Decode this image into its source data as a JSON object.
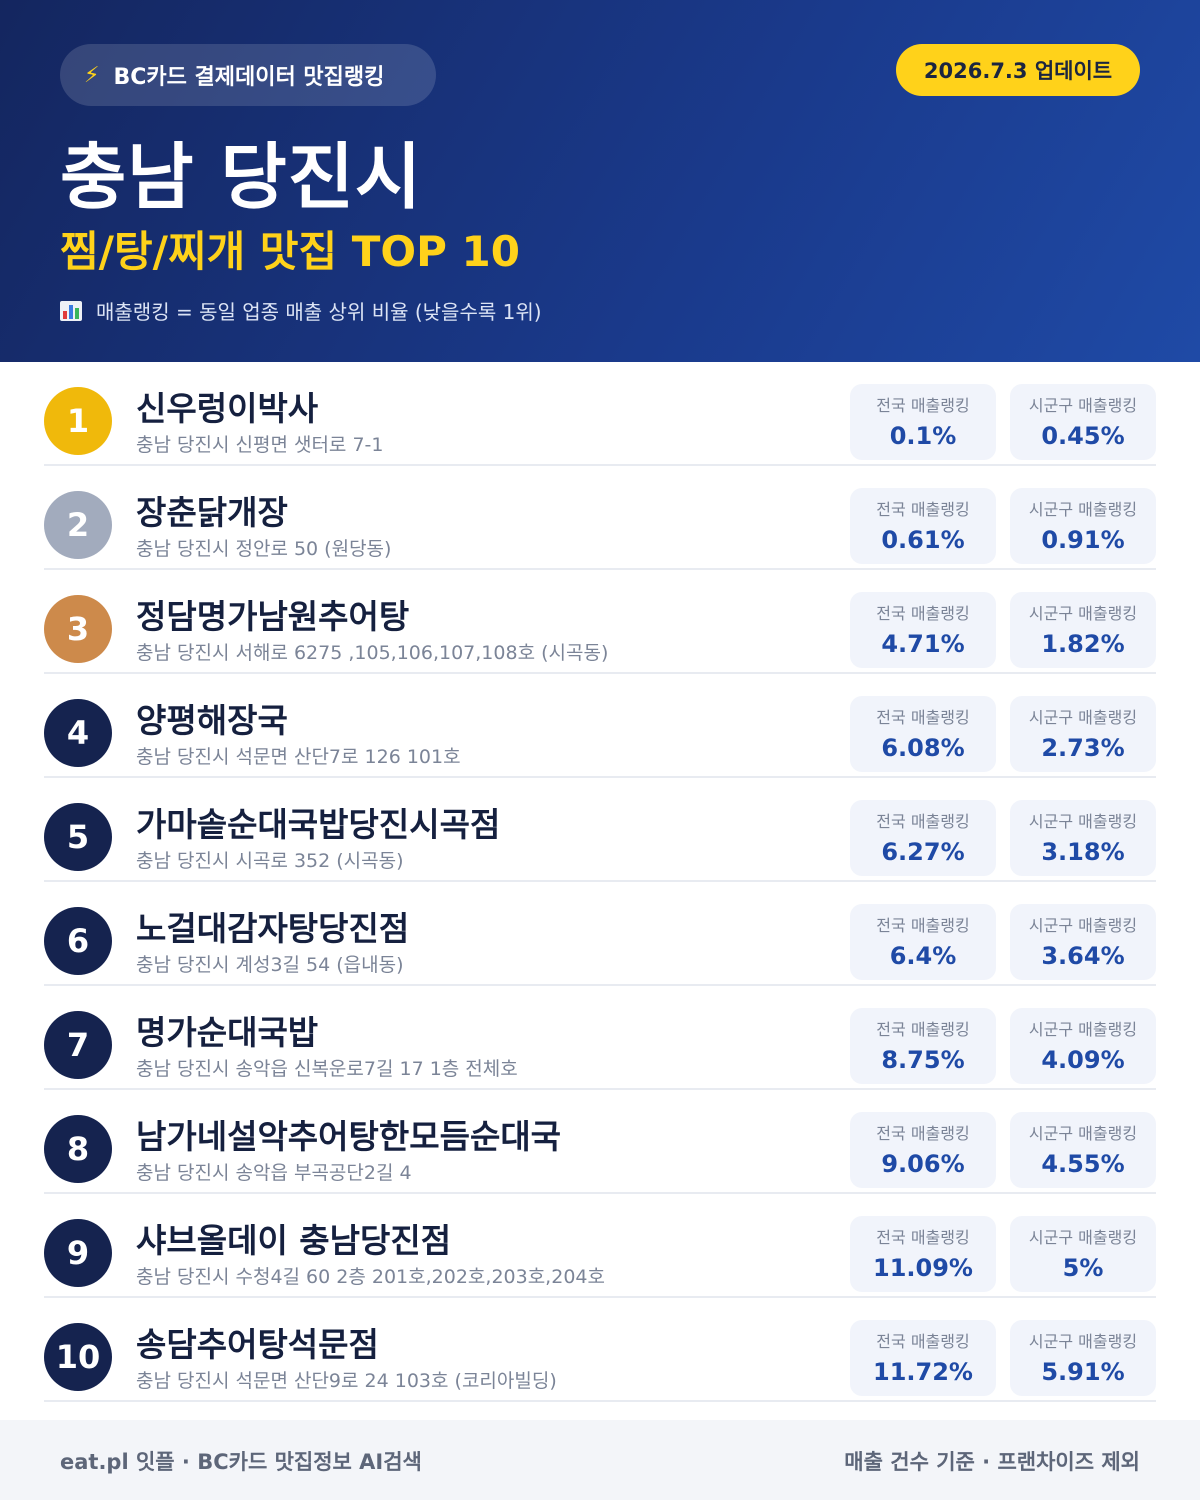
{
  "header": {
    "brand_icon": "lightning-bolt-icon",
    "brand_label": "BC카드 결제데이터 맛집랭킹",
    "update_label": "2026.7.3 업데이트",
    "region_title": "충남 당진시",
    "sub_title": "찜/탕/찌개 맛집 TOP 10",
    "note_icon": "bar-chart-icon",
    "note": "매출랭킹 = 동일 업종 매출 상위 비율 (낮을수록 1위)"
  },
  "colors": {
    "header_bg": "#1a3a8c",
    "accent_yellow": "#ffd21a",
    "rank_gold": "#f0b90b",
    "rank_silver": "#a2abbd",
    "rank_bronze": "#cd8a4b",
    "rank_default": "#15234f",
    "value_blue": "#1f4aa6"
  },
  "stat_labels": {
    "national": "전국 매출랭킹",
    "local": "시군구 매출랭킹"
  },
  "restaurants": [
    {
      "rank": "1",
      "name": "신우렁이박사",
      "address": "충남 당진시 신평면 샛터로 7-1",
      "national": "0.1%",
      "local": "0.45%",
      "badge_color": "#f0b90b"
    },
    {
      "rank": "2",
      "name": "장춘닭개장",
      "address": "충남 당진시 정안로 50 (원당동)",
      "national": "0.61%",
      "local": "0.91%",
      "badge_color": "#a2abbd"
    },
    {
      "rank": "3",
      "name": "정담명가남원추어탕",
      "address": "충남 당진시 서해로 6275 ,105,106,107,108호 (시곡동)",
      "national": "4.71%",
      "local": "1.82%",
      "badge_color": "#cd8a4b"
    },
    {
      "rank": "4",
      "name": "양평해장국",
      "address": "충남 당진시 석문면 산단7로 126 101호",
      "national": "6.08%",
      "local": "2.73%",
      "badge_color": "#15234f"
    },
    {
      "rank": "5",
      "name": "가마솥순대국밥당진시곡점",
      "address": "충남 당진시 시곡로 352 (시곡동)",
      "national": "6.27%",
      "local": "3.18%",
      "badge_color": "#15234f"
    },
    {
      "rank": "6",
      "name": "노걸대감자탕당진점",
      "address": "충남 당진시 계성3길 54 (읍내동)",
      "national": "6.4%",
      "local": "3.64%",
      "badge_color": "#15234f"
    },
    {
      "rank": "7",
      "name": "명가순대국밥",
      "address": "충남 당진시 송악읍 신복운로7길 17 1층 전체호",
      "national": "8.75%",
      "local": "4.09%",
      "badge_color": "#15234f"
    },
    {
      "rank": "8",
      "name": "남가네설악추어탕한모듬순대국",
      "address": "충남 당진시 송악읍 부곡공단2길 4",
      "national": "9.06%",
      "local": "4.55%",
      "badge_color": "#15234f"
    },
    {
      "rank": "9",
      "name": "샤브올데이 충남당진점",
      "address": "충남 당진시 수청4길 60 2층 201호,202호,203호,204호",
      "national": "11.09%",
      "local": "5%",
      "badge_color": "#15234f"
    },
    {
      "rank": "10",
      "name": "송담추어탕석문점",
      "address": "충남 당진시 석문면 산단9로 24 103호 (코리아빌딩)",
      "national": "11.72%",
      "local": "5.91%",
      "badge_color": "#15234f"
    }
  ],
  "footer": {
    "left": "eat.pl 잇플 · BC카드 맛집정보 AI검색",
    "right": "매출 건수 기준 · 프랜차이즈 제외"
  }
}
